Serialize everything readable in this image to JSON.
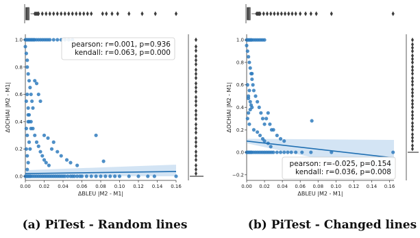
{
  "figure": {
    "captions": [
      "(a) PiTest - Random lines",
      "(b) PiTest - Changed lines"
    ]
  },
  "chart_data": [
    {
      "type": "scatter",
      "title": "",
      "xlabel": "ΔBLEU |M2 - M1|",
      "ylabel": "ΔOCHIAI |M2 - M1|",
      "xlim": [
        0,
        0.16
      ],
      "ylim": [
        -0.03,
        1.04
      ],
      "xticks": [
        0.0,
        0.02,
        0.04,
        0.06,
        0.08,
        0.1,
        0.12,
        0.14,
        0.16
      ],
      "xtick_labels": [
        "0.00",
        "0.02",
        "0.04",
        "0.06",
        "0.08",
        "0.10",
        "0.12",
        "0.14",
        "0.16"
      ],
      "yticks": [
        0.0,
        0.2,
        0.4,
        0.6,
        0.8,
        1.0
      ],
      "ytick_labels": [
        "0.0",
        "0.2",
        "0.4",
        "0.6",
        "0.8",
        "1.0"
      ],
      "grid": false,
      "stats_box": {
        "position": "top-right",
        "lines": [
          "pearson: r=0.001, p=0.936",
          "kendall: r=0.063, p=0.000"
        ]
      },
      "color": "#2f7bbd",
      "points": {
        "x": [
          0.0,
          0.001,
          0.002,
          0.003,
          0.004,
          0.005,
          0.006,
          0.008,
          0.01,
          0.012,
          0.014,
          0.016,
          0.018,
          0.02,
          0.022,
          0.024,
          0.026,
          0.028,
          0.03,
          0.032,
          0.034,
          0.036,
          0.038,
          0.04,
          0.042,
          0.045,
          0.048,
          0.05,
          0.052,
          0.055,
          0.058,
          0.06,
          0.065,
          0.07,
          0.075,
          0.08,
          0.085,
          0.09,
          0.095,
          0.1,
          0.11,
          0.12,
          0.13,
          0.137,
          0.16,
          0.0,
          0.001,
          0.002,
          0.003,
          0.004,
          0.005,
          0.006,
          0.007,
          0.008,
          0.009,
          0.01,
          0.012,
          0.014,
          0.016,
          0.018,
          0.02,
          0.022,
          0.024,
          0.026,
          0.03,
          0.034,
          0.038,
          0.042,
          0.046,
          0.05,
          0.0,
          0.001,
          0.002,
          0.002,
          0.003,
          0.004,
          0.005,
          0.006,
          0.007,
          0.008,
          0.003,
          0.004,
          0.006,
          0.01,
          0.012,
          0.014,
          0.016,
          0.02,
          0.024,
          0.028,
          0.03,
          0.034,
          0.038,
          0.044,
          0.048,
          0.055,
          0.075,
          0.083,
          0.001,
          0.002,
          0.003,
          0.002,
          0.004,
          0.001,
          0.003,
          0.002,
          0.005,
          0.001,
          0.002,
          0.003,
          0.004,
          0.006,
          0.008,
          0.01,
          0.012,
          0.014,
          0.016,
          0.018,
          0.02,
          0.022,
          0.025
        ],
        "y": [
          0.0,
          0.0,
          0.0,
          0.0,
          0.0,
          0.0,
          0.0,
          0.0,
          0.0,
          0.0,
          0.0,
          0.0,
          0.0,
          0.0,
          0.0,
          0.0,
          0.0,
          0.0,
          0.0,
          0.0,
          0.0,
          0.0,
          0.0,
          0.0,
          0.0,
          0.0,
          0.0,
          0.0,
          0.0,
          0.0,
          0.0,
          0.0,
          0.0,
          0.0,
          0.0,
          0.0,
          0.0,
          0.0,
          0.0,
          0.0,
          0.0,
          0.0,
          0.0,
          0.0,
          0.0,
          1.0,
          1.0,
          1.0,
          1.0,
          1.0,
          1.0,
          1.0,
          1.0,
          1.0,
          1.0,
          1.0,
          1.0,
          1.0,
          1.0,
          1.0,
          1.0,
          1.0,
          1.0,
          1.0,
          1.0,
          1.0,
          1.0,
          1.0,
          1.0,
          1.0,
          0.95,
          0.9,
          0.85,
          0.8,
          0.75,
          0.7,
          0.65,
          0.6,
          0.55,
          0.5,
          0.45,
          0.4,
          0.35,
          0.7,
          0.68,
          0.6,
          0.55,
          0.3,
          0.28,
          0.2,
          0.25,
          0.18,
          0.15,
          0.12,
          0.1,
          0.08,
          0.3,
          0.11,
          0.2,
          0.15,
          0.1,
          0.05,
          0.25,
          0.35,
          0.4,
          0.3,
          0.2,
          0.55,
          0.6,
          0.5,
          0.45,
          0.4,
          0.35,
          0.3,
          0.25,
          0.22,
          0.18,
          0.15,
          0.12,
          0.1,
          0.08
        ]
      },
      "regression": {
        "x": [
          0.0,
          0.16
        ],
        "y": [
          0.02,
          0.035
        ],
        "ci_upper": [
          0.045,
          0.085
        ],
        "ci_lower": [
          0.0,
          0.0
        ]
      },
      "marginal_top": {
        "range": [
          0,
          0.16
        ],
        "box_q1": 0.0005,
        "box_median": 0.0015,
        "box_q3": 0.004,
        "whisker_high": 0.01,
        "outliers": [
          0.014,
          0.018,
          0.022,
          0.026,
          0.03,
          0.034,
          0.038,
          0.042,
          0.046,
          0.05,
          0.054,
          0.058,
          0.062,
          0.066,
          0.07,
          0.082,
          0.086,
          0.092,
          0.098,
          0.11,
          0.124,
          0.138,
          0.16
        ]
      },
      "marginal_right": {
        "range": [
          -0.03,
          1.04
        ],
        "box_q1": 0.0,
        "box_median": 0.0,
        "box_q3": 0.0,
        "whisker_high": 0.0,
        "outliers": [
          0.02,
          0.05,
          0.08,
          0.12,
          0.15,
          0.18,
          0.22,
          0.25,
          0.28,
          0.32,
          0.35,
          0.38,
          0.42,
          0.45,
          0.48,
          0.52,
          0.55,
          0.58,
          0.62,
          0.65,
          0.68,
          0.72,
          0.75,
          0.78,
          0.82,
          0.85,
          0.88,
          0.92,
          0.95,
          1.0
        ]
      }
    },
    {
      "type": "scatter",
      "title": "",
      "xlabel": "ΔBLEU |M2 - M1|",
      "ylabel": "ΔOCHIAI |M2 - M1|",
      "xlim": [
        0,
        0.165
      ],
      "ylim": [
        -0.25,
        1.05
      ],
      "xticks": [
        0.0,
        0.02,
        0.04,
        0.06,
        0.08,
        0.1,
        0.12,
        0.14,
        0.16
      ],
      "xtick_labels": [
        "0.00",
        "0.02",
        "0.04",
        "0.06",
        "0.08",
        "0.10",
        "0.12",
        "0.14",
        "0.16"
      ],
      "yticks": [
        -0.2,
        0.0,
        0.2,
        0.4,
        0.6,
        0.8,
        1.0
      ],
      "ytick_labels": [
        "−0.2",
        "0.0",
        "0.2",
        "0.4",
        "0.6",
        "0.8",
        "1.0"
      ],
      "grid": false,
      "stats_box": {
        "position": "bottom-right",
        "lines": [
          "pearson: r=-0.025, p=0.154",
          "kendall: r=0.036, p=0.008"
        ]
      },
      "color": "#2f7bbd",
      "points": {
        "x": [
          0.0,
          0.001,
          0.002,
          0.003,
          0.004,
          0.005,
          0.006,
          0.008,
          0.01,
          0.012,
          0.014,
          0.016,
          0.018,
          0.02,
          0.022,
          0.024,
          0.026,
          0.028,
          0.03,
          0.034,
          0.038,
          0.042,
          0.046,
          0.05,
          0.055,
          0.062,
          0.072,
          0.095,
          0.164,
          0.0,
          0.001,
          0.002,
          0.003,
          0.004,
          0.005,
          0.006,
          0.008,
          0.01,
          0.012,
          0.014,
          0.016,
          0.018,
          0.02,
          0.0,
          0.001,
          0.002,
          0.003,
          0.004,
          0.005,
          0.006,
          0.007,
          0.008,
          0.002,
          0.004,
          0.006,
          0.01,
          0.012,
          0.014,
          0.016,
          0.018,
          0.02,
          0.022,
          0.024,
          0.026,
          0.028,
          0.03,
          0.034,
          0.038,
          0.042,
          0.073,
          0.001,
          0.003,
          0.002,
          0.005,
          0.004,
          0.001,
          0.003,
          0.008,
          0.012,
          0.015,
          0.018,
          0.02,
          0.024,
          0.027,
          0.002,
          0.006
        ],
        "y": [
          0.0,
          0.0,
          0.0,
          0.0,
          0.0,
          0.0,
          0.0,
          0.0,
          0.0,
          0.0,
          0.0,
          0.0,
          0.0,
          0.0,
          0.0,
          0.0,
          0.0,
          0.0,
          0.0,
          0.0,
          0.0,
          0.0,
          0.0,
          0.0,
          0.0,
          0.0,
          0.0,
          0.0,
          0.0,
          1.0,
          1.0,
          1.0,
          1.0,
          1.0,
          1.0,
          1.0,
          1.0,
          1.0,
          1.0,
          1.0,
          1.0,
          1.0,
          1.0,
          0.95,
          0.9,
          0.85,
          0.8,
          0.75,
          0.7,
          0.65,
          0.6,
          0.55,
          0.5,
          0.45,
          0.4,
          0.5,
          0.45,
          0.4,
          0.35,
          0.3,
          0.25,
          0.3,
          0.35,
          0.25,
          0.2,
          0.2,
          0.15,
          0.12,
          0.1,
          0.28,
          0.6,
          0.55,
          0.48,
          0.42,
          0.38,
          0.3,
          0.25,
          0.2,
          0.18,
          0.15,
          0.12,
          0.1,
          0.08,
          0.05,
          0.35,
          0.7
        ]
      },
      "regression": {
        "x": [
          0.0,
          0.165
        ],
        "y": [
          0.1,
          -0.05
        ],
        "ci_upper": [
          0.12,
          0.11
        ],
        "ci_lower": [
          0.08,
          -0.2
        ]
      },
      "marginal_top": {
        "range": [
          0,
          0.165
        ],
        "box_q1": 0.0005,
        "box_median": 0.0015,
        "box_q3": 0.004,
        "whisker_high": 0.011,
        "outliers": [
          0.015,
          0.019,
          0.023,
          0.027,
          0.031,
          0.035,
          0.039,
          0.043,
          0.047,
          0.051,
          0.055,
          0.06,
          0.066,
          0.072,
          0.078,
          0.095,
          0.164
        ]
      },
      "marginal_right": {
        "range": [
          -0.25,
          1.05
        ],
        "box_q1": 0.0,
        "box_median": 0.0,
        "box_q3": 0.0,
        "whisker_high": 0.0,
        "outliers": [
          0.03,
          0.06,
          0.1,
          0.13,
          0.16,
          0.2,
          0.23,
          0.26,
          0.3,
          0.33,
          0.36,
          0.4,
          0.43,
          0.46,
          0.5,
          0.53,
          0.56,
          0.6,
          0.63,
          0.66,
          0.7,
          0.73,
          0.76,
          0.8,
          0.83,
          0.86,
          0.9,
          0.93,
          0.96,
          1.0
        ]
      }
    }
  ]
}
